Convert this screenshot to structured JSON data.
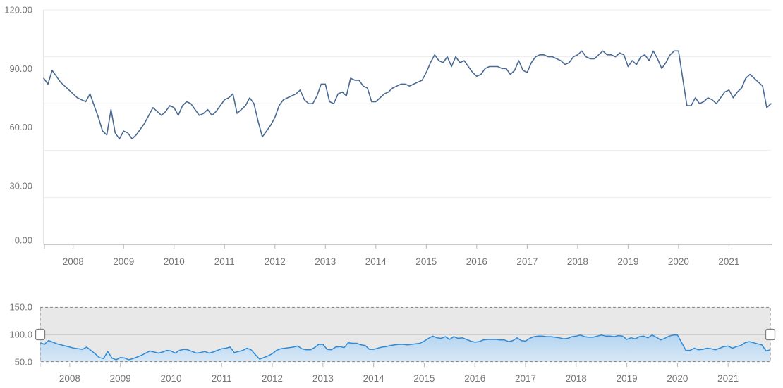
{
  "chart_data": {
    "type": "line",
    "title": "",
    "xlabel": "",
    "ylabel": "",
    "x_unit": "month",
    "x_start": "2007-06",
    "x_end": "2021-11",
    "values": [
      85,
      82,
      89,
      86,
      83,
      81,
      79,
      77,
      75,
      74,
      73,
      77,
      71,
      65,
      58,
      56,
      69,
      57,
      54,
      58,
      57,
      54,
      56,
      59,
      62,
      66,
      70,
      68,
      66,
      68,
      71,
      70,
      66,
      71,
      73,
      72,
      69,
      66,
      67,
      69,
      66,
      68,
      71,
      74,
      75,
      77,
      67,
      69,
      71,
      75,
      72,
      63,
      55,
      58,
      61,
      65,
      71,
      74,
      75,
      76,
      77,
      79,
      74,
      72,
      72,
      76,
      82,
      82,
      73,
      72,
      77,
      78,
      76,
      85,
      84,
      84,
      81,
      80,
      73,
      73,
      75,
      77,
      78,
      80,
      81,
      82,
      82,
      81,
      82,
      83,
      84,
      88,
      93,
      97,
      94,
      93,
      96,
      91,
      96,
      93,
      94,
      91,
      88,
      86,
      87,
      90,
      91,
      91,
      91,
      90,
      90,
      87,
      89,
      94,
      89,
      88,
      93,
      96,
      97,
      97,
      96,
      96,
      95,
      94,
      92,
      93,
      96,
      97,
      99,
      96,
      95,
      95,
      97,
      99,
      97,
      97,
      96,
      98,
      97,
      91,
      94,
      92,
      96,
      97,
      94,
      99,
      95,
      90,
      93,
      97,
      99,
      99,
      85,
      71,
      71,
      75,
      72,
      73,
      75,
      74,
      72,
      75,
      78,
      79,
      75,
      78,
      80,
      85,
      87,
      85,
      83,
      81,
      70,
      72
    ],
    "main_axis": {
      "ylim": [
        0,
        120
      ],
      "y_tick_labels": [
        "120.00",
        "90.00",
        "60.00",
        "30.00",
        "0.00"
      ],
      "y_tick_values": [
        120,
        90,
        60,
        30,
        0
      ],
      "x_tick_year_labels": [
        "2008",
        "2009",
        "2010",
        "2011",
        "2012",
        "2013",
        "2014",
        "2015",
        "2016",
        "2017",
        "2018",
        "2019",
        "2020",
        "2021"
      ],
      "gridlines": "horizontal-only",
      "legend": false
    },
    "navigator": {
      "ylim": [
        50,
        150
      ],
      "y_tick_labels": [
        "150.0",
        "100.0",
        "50.0"
      ],
      "y_tick_values": [
        150,
        100,
        50
      ],
      "x_tick_year_labels": [
        "2008",
        "2009",
        "2010",
        "2011",
        "2012",
        "2013",
        "2014",
        "2015",
        "2016",
        "2017",
        "2018",
        "2019",
        "2020",
        "2021"
      ],
      "selected_range": "full",
      "series_style": "area"
    }
  },
  "colors": {
    "background": "#ffffff",
    "main_line": "#4a6a93",
    "grid_line": "#ececec",
    "axis_line": "#b5b5b5",
    "axis_left_line": "#c9c9c9",
    "tick_label": "#757575",
    "nav_background": "#e8e8e8",
    "nav_grid_line": "#b2b2b2",
    "nav_line": "#2e8ad6",
    "nav_fill_top": "#8fc0ea",
    "nav_fill_bottom": "#d8e8f6",
    "nav_border_dash": "#8f8f8f",
    "handle_fill": "#ffffff",
    "handle_stroke": "#7f7f7f"
  }
}
